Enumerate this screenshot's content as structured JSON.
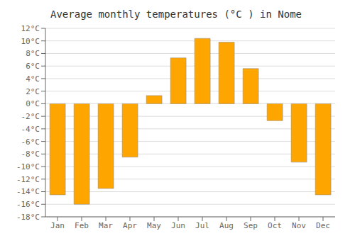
{
  "chart_data": {
    "type": "bar",
    "title": "Average monthly temperatures (°C ) in Nome",
    "categories": [
      "Jan",
      "Feb",
      "Mar",
      "Apr",
      "May",
      "Jun",
      "Jul",
      "Aug",
      "Sep",
      "Oct",
      "Nov",
      "Dec"
    ],
    "values": [
      -14.5,
      -16.0,
      -13.5,
      -8.5,
      1.3,
      7.3,
      10.4,
      9.8,
      5.6,
      -2.7,
      -9.3,
      -14.5
    ],
    "color": "#FFA500",
    "ylim": [
      -18,
      12
    ],
    "yticks": [
      {
        "value": -18,
        "label": "-18°C"
      },
      {
        "value": -16,
        "label": "-16°C"
      },
      {
        "value": -14,
        "label": "-14°C"
      },
      {
        "value": -12,
        "label": "-12°C"
      },
      {
        "value": -10,
        "label": "-10°C"
      },
      {
        "value": -8,
        "label": "-8°C"
      },
      {
        "value": -6,
        "label": "-6°C"
      },
      {
        "value": -4,
        "label": "-4°C"
      },
      {
        "value": -2,
        "label": "-2°C"
      },
      {
        "value": 0,
        "label": "0°C"
      },
      {
        "value": 2,
        "label": "2°C"
      },
      {
        "value": 4,
        "label": "4°C"
      },
      {
        "value": 6,
        "label": "6°C"
      },
      {
        "value": 8,
        "label": "8°C"
      },
      {
        "value": 10,
        "label": "10°C"
      },
      {
        "value": 12,
        "label": "12°C"
      }
    ],
    "grid": true
  }
}
